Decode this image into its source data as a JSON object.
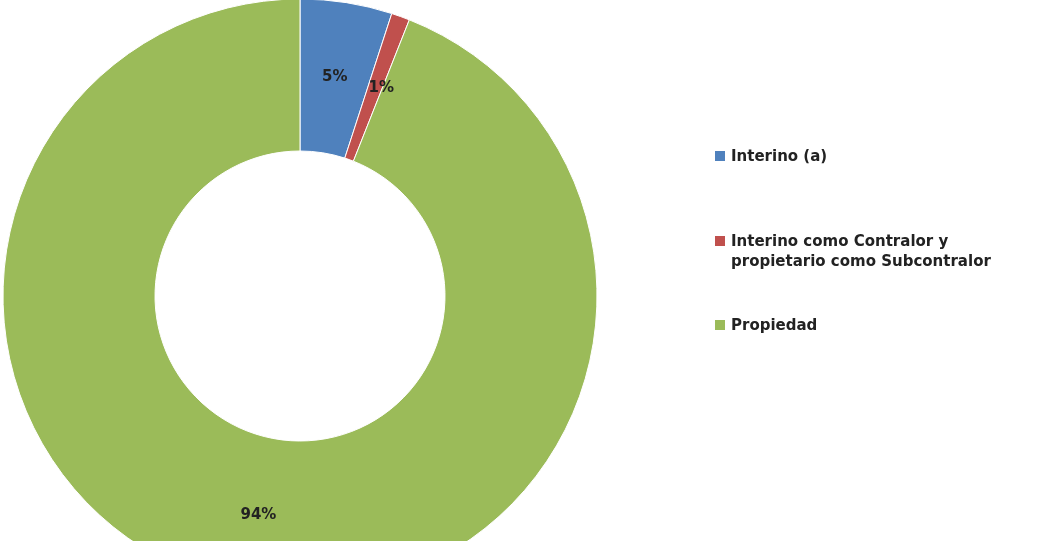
{
  "chart_data": {
    "type": "donut",
    "categories": [
      "Interino (a)",
      "Interino como Contralor y propietario como Subcontralor",
      "Propiedad"
    ],
    "values": [
      5,
      1,
      94
    ],
    "colors": [
      "#4f81bd",
      "#c0504d",
      "#9bbb59"
    ],
    "value_labels": [
      "5%",
      "1%",
      "94%"
    ],
    "legend": "right"
  }
}
